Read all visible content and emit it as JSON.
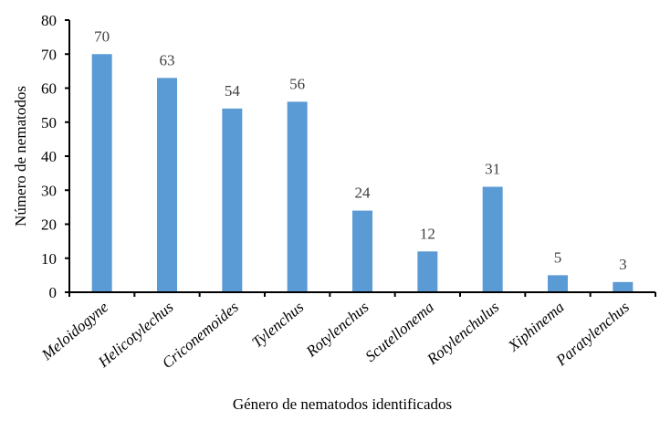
{
  "chart_data": {
    "type": "bar",
    "title": "",
    "xlabel": "Género de nematodos identificados",
    "ylabel": "Número de nematodos",
    "categories": [
      "Meloidogyne",
      "Helicotylechus",
      "Criconemoides",
      "Tylenchus",
      "Rotylenchus",
      "Scutellonema",
      "Rotylenchulus",
      "Xiphinema",
      "Paratylenchus"
    ],
    "values": [
      70,
      63,
      54,
      56,
      24,
      12,
      31,
      5,
      3
    ],
    "ylim": [
      0,
      80
    ],
    "yticks": [
      0,
      10,
      20,
      30,
      40,
      50,
      60,
      70,
      80
    ],
    "grid": false,
    "legend": null,
    "data_labels": true,
    "bar_color": "#5b9bd5"
  },
  "colors": {
    "bar": "#5b9bd5",
    "axis": "#000000",
    "data_label": "#404040"
  }
}
